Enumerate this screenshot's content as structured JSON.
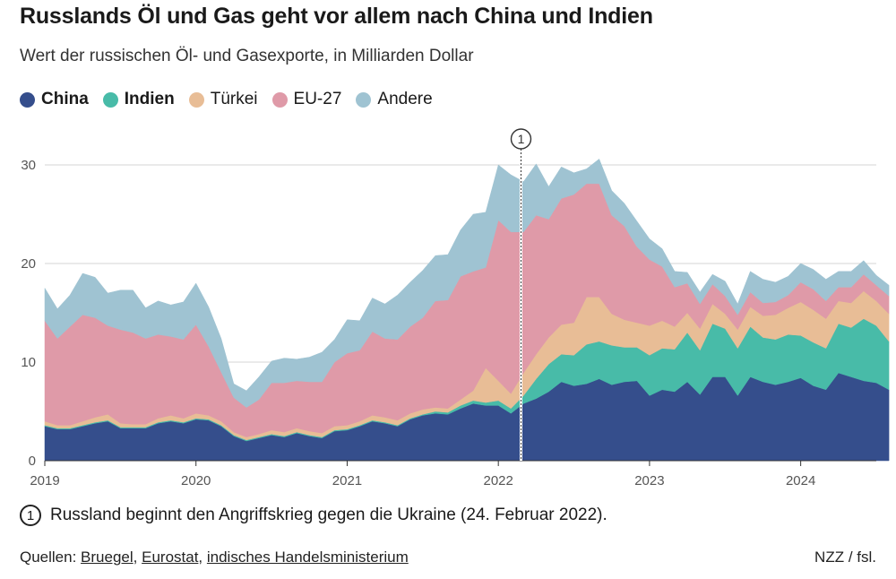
{
  "header": {
    "title": "Russlands Öl und Gas geht vor allem nach China und Indien",
    "subtitle": "Wert der russischen Öl- und Gasexporte, in Milliarden Dollar"
  },
  "legend": [
    {
      "label": "China",
      "color": "#354e8c",
      "bold": true
    },
    {
      "label": "Indien",
      "color": "#48bba8",
      "bold": true
    },
    {
      "label": "Türkei",
      "color": "#e8bd96",
      "bold": false
    },
    {
      "label": "EU-27",
      "color": "#df9aa8",
      "bold": false
    },
    {
      "label": "Andere",
      "color": "#9fc3d2",
      "bold": false
    }
  ],
  "chart_data": {
    "type": "area",
    "stacked": true,
    "title": "Russlands Öl und Gas geht vor allem nach China und Indien",
    "ylabel": "Milliarden Dollar",
    "ylim": [
      0,
      34
    ],
    "yticks": [
      0,
      10,
      20,
      30
    ],
    "xlim": [
      2019.0,
      2024.5
    ],
    "xticks": [
      {
        "value": 2019,
        "label": "2019"
      },
      {
        "value": 2020,
        "label": "2020"
      },
      {
        "value": 2021,
        "label": "2021"
      },
      {
        "value": 2022,
        "label": "2022"
      },
      {
        "value": 2023,
        "label": "2023"
      },
      {
        "value": 2024,
        "label": "2024"
      }
    ],
    "x_start": 2019.0,
    "x_step_months": 1,
    "annotation": {
      "x": 2022.15,
      "label": "1"
    },
    "series": [
      {
        "name": "China",
        "color": "#354e8c",
        "values": [
          3.5,
          3.2,
          3.2,
          3.5,
          3.8,
          4.0,
          3.3,
          3.3,
          3.3,
          3.8,
          4.0,
          3.8,
          4.2,
          4.1,
          3.5,
          2.5,
          2.0,
          2.3,
          2.6,
          2.4,
          2.8,
          2.5,
          2.3,
          3.0,
          3.1,
          3.5,
          4.0,
          3.8,
          3.5,
          4.2,
          4.6,
          4.8,
          4.7,
          5.3,
          5.8,
          5.6,
          5.6,
          4.8,
          5.8,
          6.3,
          7.0,
          8.0,
          7.6,
          7.8,
          8.3,
          7.7,
          8.0,
          8.1,
          6.6,
          7.2,
          7.0,
          8.0,
          6.7,
          8.5,
          8.5,
          6.6,
          8.5,
          8.0,
          7.7,
          8.0,
          8.4,
          7.6,
          7.2,
          8.9,
          8.5,
          8.1,
          7.9,
          7.2
        ]
      },
      {
        "name": "Indien",
        "color": "#48bba8",
        "values": [
          0.1,
          0.1,
          0.1,
          0.1,
          0.1,
          0.1,
          0.1,
          0.1,
          0.1,
          0.1,
          0.1,
          0.1,
          0.1,
          0.1,
          0.1,
          0.1,
          0.1,
          0.1,
          0.1,
          0.1,
          0.1,
          0.1,
          0.1,
          0.1,
          0.1,
          0.1,
          0.1,
          0.1,
          0.1,
          0.1,
          0.1,
          0.2,
          0.2,
          0.3,
          0.3,
          0.3,
          0.5,
          0.5,
          0.8,
          2.0,
          2.8,
          2.8,
          3.1,
          4.0,
          3.8,
          4.0,
          3.5,
          3.4,
          4.1,
          4.2,
          4.3,
          5.0,
          4.5,
          5.4,
          4.9,
          4.8,
          5.1,
          4.5,
          4.6,
          4.8,
          4.3,
          4.4,
          4.2,
          5.0,
          5.0,
          6.3,
          5.8,
          4.9
        ]
      },
      {
        "name": "Türkei",
        "color": "#e8bd96",
        "values": [
          0.4,
          0.3,
          0.3,
          0.4,
          0.5,
          0.6,
          0.4,
          0.3,
          0.3,
          0.4,
          0.5,
          0.4,
          0.5,
          0.4,
          0.4,
          0.3,
          0.3,
          0.3,
          0.4,
          0.4,
          0.4,
          0.4,
          0.4,
          0.4,
          0.4,
          0.4,
          0.5,
          0.5,
          0.5,
          0.5,
          0.5,
          0.4,
          0.4,
          0.6,
          1.0,
          3.5,
          2.0,
          1.5,
          2.3,
          2.5,
          2.7,
          3.0,
          3.3,
          4.8,
          4.5,
          3.2,
          2.8,
          2.5,
          3.0,
          2.8,
          2.3,
          2.0,
          2.2,
          2.0,
          1.5,
          1.9,
          2.0,
          2.2,
          2.5,
          2.7,
          3.4,
          3.3,
          3.0,
          2.3,
          2.5,
          2.8,
          2.5,
          2.8
        ]
      },
      {
        "name": "EU-27",
        "color": "#df9aa8",
        "values": [
          10.2,
          8.8,
          10.0,
          10.8,
          10.1,
          9.0,
          9.5,
          9.3,
          8.7,
          8.5,
          8.0,
          8.0,
          9.0,
          7.0,
          5.0,
          3.5,
          3.0,
          3.5,
          4.8,
          5.0,
          4.8,
          5.0,
          5.2,
          6.5,
          7.3,
          7.2,
          8.5,
          8.0,
          8.2,
          8.8,
          9.3,
          10.8,
          11.0,
          12.5,
          12.1,
          10.2,
          16.3,
          16.4,
          14.3,
          14.1,
          12.0,
          12.8,
          13.0,
          11.5,
          11.5,
          10.0,
          9.5,
          7.7,
          6.7,
          5.5,
          4.0,
          3.0,
          2.5,
          2.0,
          1.8,
          1.5,
          1.5,
          1.3,
          1.3,
          1.3,
          2.0,
          2.1,
          1.8,
          1.4,
          1.6,
          1.7,
          1.6,
          1.8
        ]
      },
      {
        "name": "Andere",
        "color": "#9fc3d2",
        "values": [
          3.3,
          3.0,
          3.2,
          4.2,
          4.1,
          3.3,
          4.0,
          4.3,
          3.1,
          3.4,
          3.2,
          3.8,
          4.2,
          4.0,
          3.4,
          1.4,
          1.7,
          2.3,
          2.2,
          2.5,
          2.2,
          2.5,
          3.0,
          2.3,
          3.4,
          3.0,
          3.4,
          3.5,
          4.5,
          4.5,
          4.8,
          4.6,
          4.6,
          4.7,
          5.8,
          5.6,
          5.6,
          5.8,
          5.1,
          5.2,
          3.3,
          3.2,
          2.2,
          1.5,
          2.5,
          2.5,
          2.3,
          2.6,
          2.1,
          1.8,
          1.6,
          1.1,
          1.2,
          1.0,
          1.5,
          1.1,
          2.1,
          2.4,
          2.0,
          1.9,
          1.9,
          2.0,
          2.2,
          1.6,
          1.6,
          1.4,
          1.0,
          1.1
        ]
      }
    ]
  },
  "annotation_note": {
    "number": "1",
    "text": "Russland beginnt den Angriffskrieg gegen die Ukraine (24. Februar 2022)."
  },
  "footer": {
    "sources_prefix": "Quellen: ",
    "sources": [
      "Bruegel",
      "Eurostat",
      "indisches Handelsministerium"
    ],
    "credit": "NZZ / fsl."
  }
}
